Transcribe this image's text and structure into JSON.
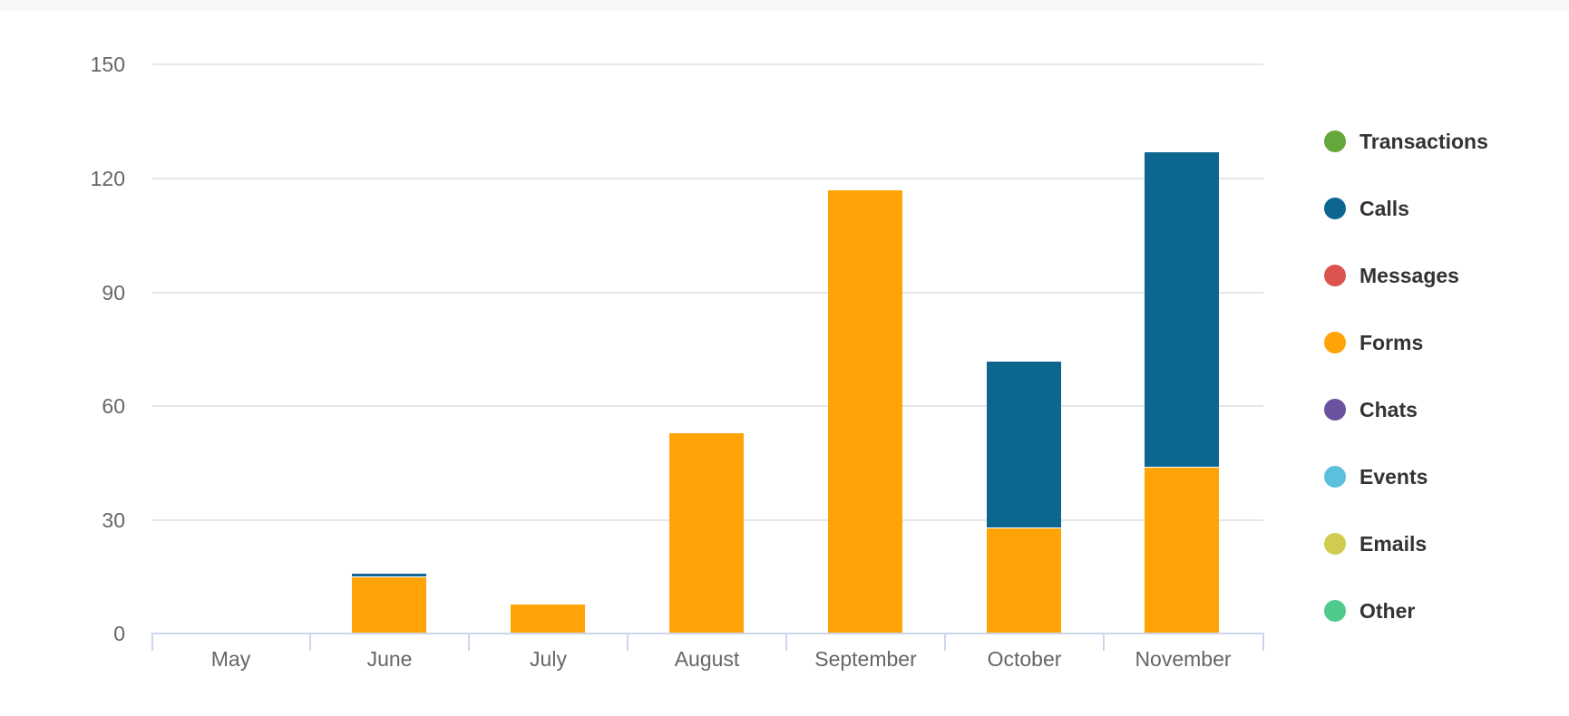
{
  "chart_data": {
    "type": "bar",
    "stacked": true,
    "title": "",
    "xlabel": "",
    "ylabel": "",
    "ylim": [
      0,
      150
    ],
    "yticks": [
      0,
      30,
      60,
      90,
      120,
      150
    ],
    "grid": true,
    "legend_position": "right",
    "categories": [
      "May",
      "June",
      "July",
      "August",
      "September",
      "October",
      "November"
    ],
    "series": [
      {
        "name": "Transactions",
        "color": "#64a83c",
        "values": [
          0,
          0,
          0,
          0,
          0,
          0,
          0
        ]
      },
      {
        "name": "Calls",
        "color": "#0d6690",
        "values": [
          0,
          1,
          0,
          0,
          0,
          44,
          83
        ]
      },
      {
        "name": "Messages",
        "color": "#db5450",
        "values": [
          0,
          0,
          0,
          0,
          0,
          0,
          0
        ]
      },
      {
        "name": "Forms",
        "color": "#ffa307",
        "values": [
          0,
          15,
          8,
          53,
          117,
          28,
          44
        ]
      },
      {
        "name": "Chats",
        "color": "#6a52a1",
        "values": [
          0,
          0,
          0,
          0,
          0,
          0,
          0
        ]
      },
      {
        "name": "Events",
        "color": "#5bc0de",
        "values": [
          0,
          0,
          0,
          0,
          0,
          0,
          0
        ]
      },
      {
        "name": "Emails",
        "color": "#cfcc4f",
        "values": [
          0,
          0,
          0,
          0,
          0,
          0,
          0
        ]
      },
      {
        "name": "Other",
        "color": "#4ecb8a",
        "values": [
          0,
          0,
          0,
          0,
          0,
          0,
          0
        ]
      }
    ]
  },
  "yaxis": {
    "labels": [
      "150",
      "120",
      "90",
      "60",
      "30",
      "0"
    ]
  },
  "xaxis": {
    "labels": [
      "May",
      "June",
      "July",
      "August",
      "September",
      "October",
      "November"
    ]
  },
  "legend": {
    "items": [
      {
        "label": "Transactions",
        "color": "#64a83c"
      },
      {
        "label": "Calls",
        "color": "#0d6690"
      },
      {
        "label": "Messages",
        "color": "#db5450"
      },
      {
        "label": "Forms",
        "color": "#ffa307"
      },
      {
        "label": "Chats",
        "color": "#6a52a1"
      },
      {
        "label": "Events",
        "color": "#5bc0de"
      },
      {
        "label": "Emails",
        "color": "#cfcc4f"
      },
      {
        "label": "Other",
        "color": "#4ecb8a"
      }
    ]
  }
}
